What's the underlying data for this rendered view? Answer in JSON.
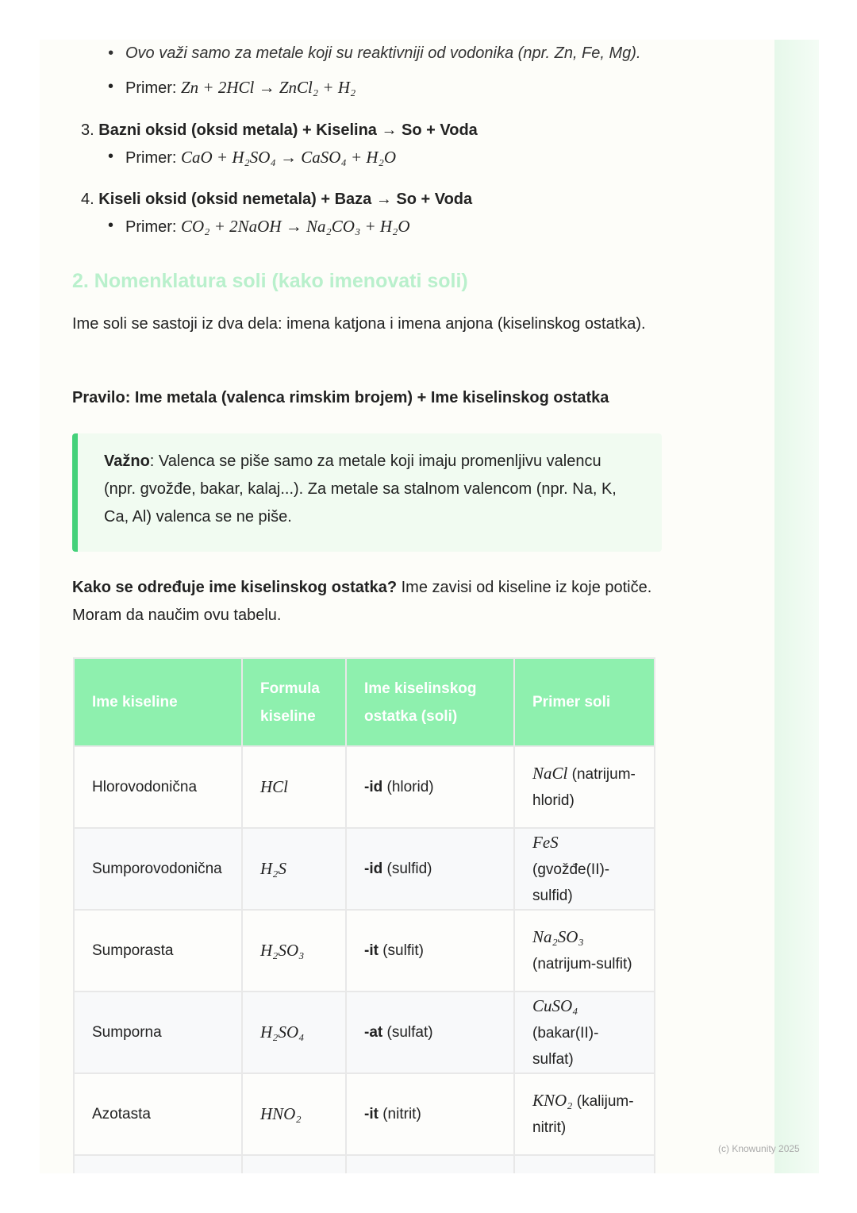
{
  "bullets_top": [
    {
      "text": "Ovo važi samo za metale koji su reaktivniji od vodonika (npr. Zn, Fe, Mg)."
    },
    {
      "label": "Primer: ",
      "formula": "Zn + 2HCl → ZnCl₂ + H₂"
    }
  ],
  "items": [
    {
      "num": "3.",
      "title": "Bazni oksid (oksid metala) + Kiselina → So + Voda",
      "label": "Primer: ",
      "formula": "CaO + H₂SO₄ → CaSO₄ + H₂O"
    },
    {
      "num": "4.",
      "title": "Kiseli oksid (oksid nemetala) + Baza → So + Voda",
      "label": "Primer: ",
      "formula": "CO₂ + 2NaOH → Na₂CO₃ + H₂O"
    }
  ],
  "section_heading": "2. Nomenklatura soli (kako imenovati soli)",
  "intro": "Ime soli se sastoji iz dva dela: imena katjona i imena anjona (kiselinskog ostatka).",
  "rule": "Pravilo: Ime metala (valenca rimskim brojem) + Ime kiselinskog ostatka",
  "note": {
    "bold": "Važno",
    "text": ": Valenca se piše samo za metale koji imaju promenljivu valencu (npr. gvožđe, bakar, kalaj...). Za metale sa stalnom valencom (npr. Na, K, Ca, Al) valenca se ne piše."
  },
  "question": {
    "bold": "Kako se određuje ime kiselinskog ostatka?",
    "text": " Ime zavisi od kiseline iz koje potiče. Moram da naučim ovu tabelu."
  },
  "table": {
    "headers": [
      "Ime kiseline",
      "Formula kiseline",
      "Ime kiselinskog ostatka (soli)",
      "Primer soli"
    ],
    "rows": [
      {
        "acid": "Hlorovodonična",
        "formula": "HCl",
        "suffix": "-id",
        "suffix_name": " (hlorid)",
        "salt": "NaCl",
        "salt_name": " (natrijum-hlorid)"
      },
      {
        "acid": "Sumporovodonična",
        "formula": "H₂S",
        "suffix": "-id",
        "suffix_name": " (sulfid)",
        "salt": "FeS",
        "salt_name": " (gvožđe(II)-sulfid)"
      },
      {
        "acid": "Sumporasta",
        "formula": "H₂SO₃",
        "suffix": "-it",
        "suffix_name": " (sulfit)",
        "salt": "Na₂SO₃",
        "salt_name": " (natrijum-sulfit)"
      },
      {
        "acid": "Sumporna",
        "formula": "H₂SO₄",
        "suffix": "-at",
        "suffix_name": " (sulfat)",
        "salt": "CuSO₄",
        "salt_name": " (bakar(II)-sulfat)"
      },
      {
        "acid": "Azotasta",
        "formula": "HNO₂",
        "suffix": "-it",
        "suffix_name": " (nitrit)",
        "salt": "KNO₂",
        "salt_name": " (kalijum-nitrit)"
      }
    ]
  },
  "watermark": "(c) Knowunity 2025",
  "colors": {
    "accent": "#44d17a",
    "header": "#8ef0ae",
    "heading": "#b9f0cc"
  }
}
